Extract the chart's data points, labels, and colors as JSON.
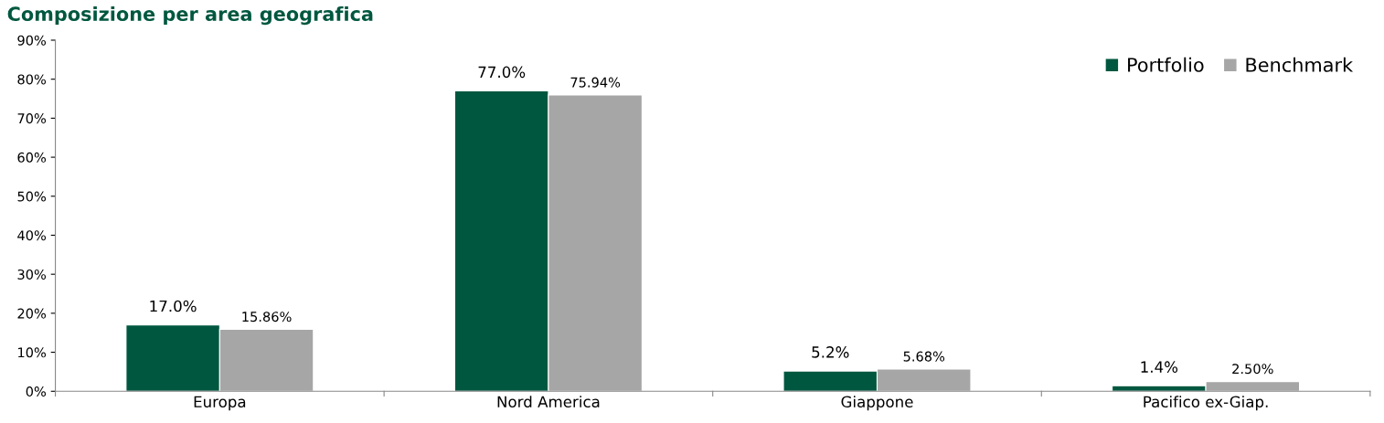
{
  "chart_data": {
    "type": "bar",
    "title": "Composizione per area geografica",
    "categories": [
      "Europa",
      "Nord America",
      "Giappone",
      "Pacifico ex-Giap."
    ],
    "series": [
      {
        "name": "Portfolio",
        "color": "#00573f",
        "values": [
          17.0,
          77.0,
          5.2,
          1.4
        ],
        "value_labels": [
          "17.0%",
          "77.0%",
          "5.2%",
          "1.4%"
        ]
      },
      {
        "name": "Benchmark",
        "color": "#a6a6a6",
        "values": [
          15.86,
          75.94,
          5.68,
          2.5
        ],
        "value_labels": [
          "15.86%",
          "75.94%",
          "5.68%",
          "2.50%"
        ]
      }
    ],
    "ylim": [
      0,
      90
    ],
    "yticks": [
      {
        "value": 0,
        "label": "0%"
      },
      {
        "value": 10,
        "label": "10%"
      },
      {
        "value": 20,
        "label": "20%"
      },
      {
        "value": 30,
        "label": "30%"
      },
      {
        "value": 40,
        "label": "40%"
      },
      {
        "value": 50,
        "label": "50%"
      },
      {
        "value": 60,
        "label": "60%"
      },
      {
        "value": 70,
        "label": "70%"
      },
      {
        "value": 80,
        "label": "80%"
      },
      {
        "value": 90,
        "label": "90%"
      }
    ],
    "legend": "top right",
    "grid": false
  }
}
